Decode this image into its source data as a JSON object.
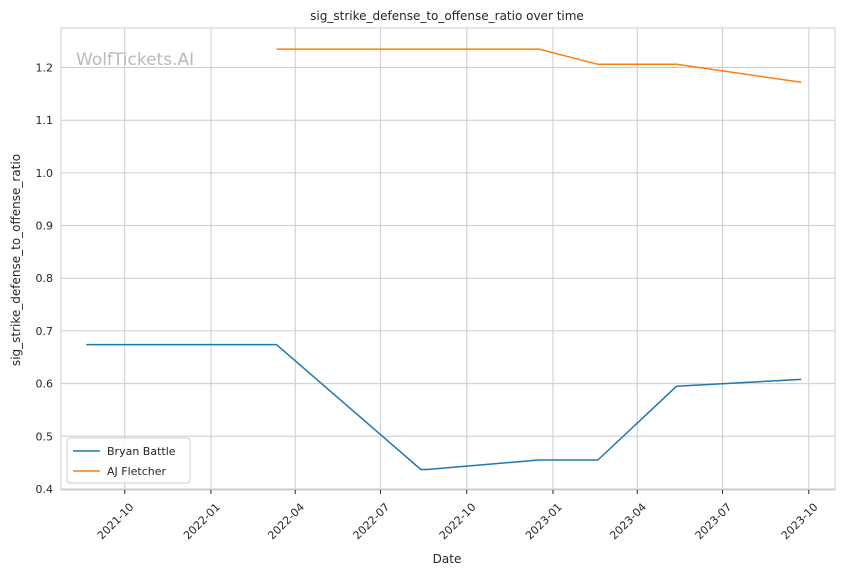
{
  "chart_data": {
    "type": "line",
    "title": "sig_strike_defense_to_offense_ratio over time",
    "xlabel": "Date",
    "ylabel": "sig_strike_defense_to_offense_ratio",
    "watermark": "WolfTickets.AI",
    "x_ticks": [
      "2021-10",
      "2022-01",
      "2022-04",
      "2022-07",
      "2022-10",
      "2023-01",
      "2023-04",
      "2023-07",
      "2023-10"
    ],
    "y_ticks": [
      "0.4",
      "0.5",
      "0.6",
      "0.7",
      "0.8",
      "0.9",
      "1.0",
      "1.1",
      "1.2"
    ],
    "xlim": [
      "2021-07-25",
      "2023-10-29"
    ],
    "ylim": [
      0.398,
      1.275
    ],
    "grid": true,
    "legend_position": "lower-left",
    "series": [
      {
        "name": "Bryan Battle",
        "color": "#1f77b4",
        "points": [
          {
            "x": "2021-08-21",
            "y": 0.674
          },
          {
            "x": "2022-03-12",
            "y": 0.674
          },
          {
            "x": "2022-08-13",
            "y": 0.437
          },
          {
            "x": "2022-08-20",
            "y": 0.437
          },
          {
            "x": "2022-12-17",
            "y": 0.455
          },
          {
            "x": "2023-02-18",
            "y": 0.455
          },
          {
            "x": "2023-05-13",
            "y": 0.595
          },
          {
            "x": "2023-09-23",
            "y": 0.608
          }
        ]
      },
      {
        "name": "AJ Fletcher",
        "color": "#ff7f0e",
        "points": [
          {
            "x": "2022-03-12",
            "y": 1.235
          },
          {
            "x": "2022-12-17",
            "y": 1.235
          },
          {
            "x": "2023-02-18",
            "y": 1.206
          },
          {
            "x": "2023-05-13",
            "y": 1.206
          },
          {
            "x": "2023-09-23",
            "y": 1.172
          }
        ]
      }
    ]
  }
}
